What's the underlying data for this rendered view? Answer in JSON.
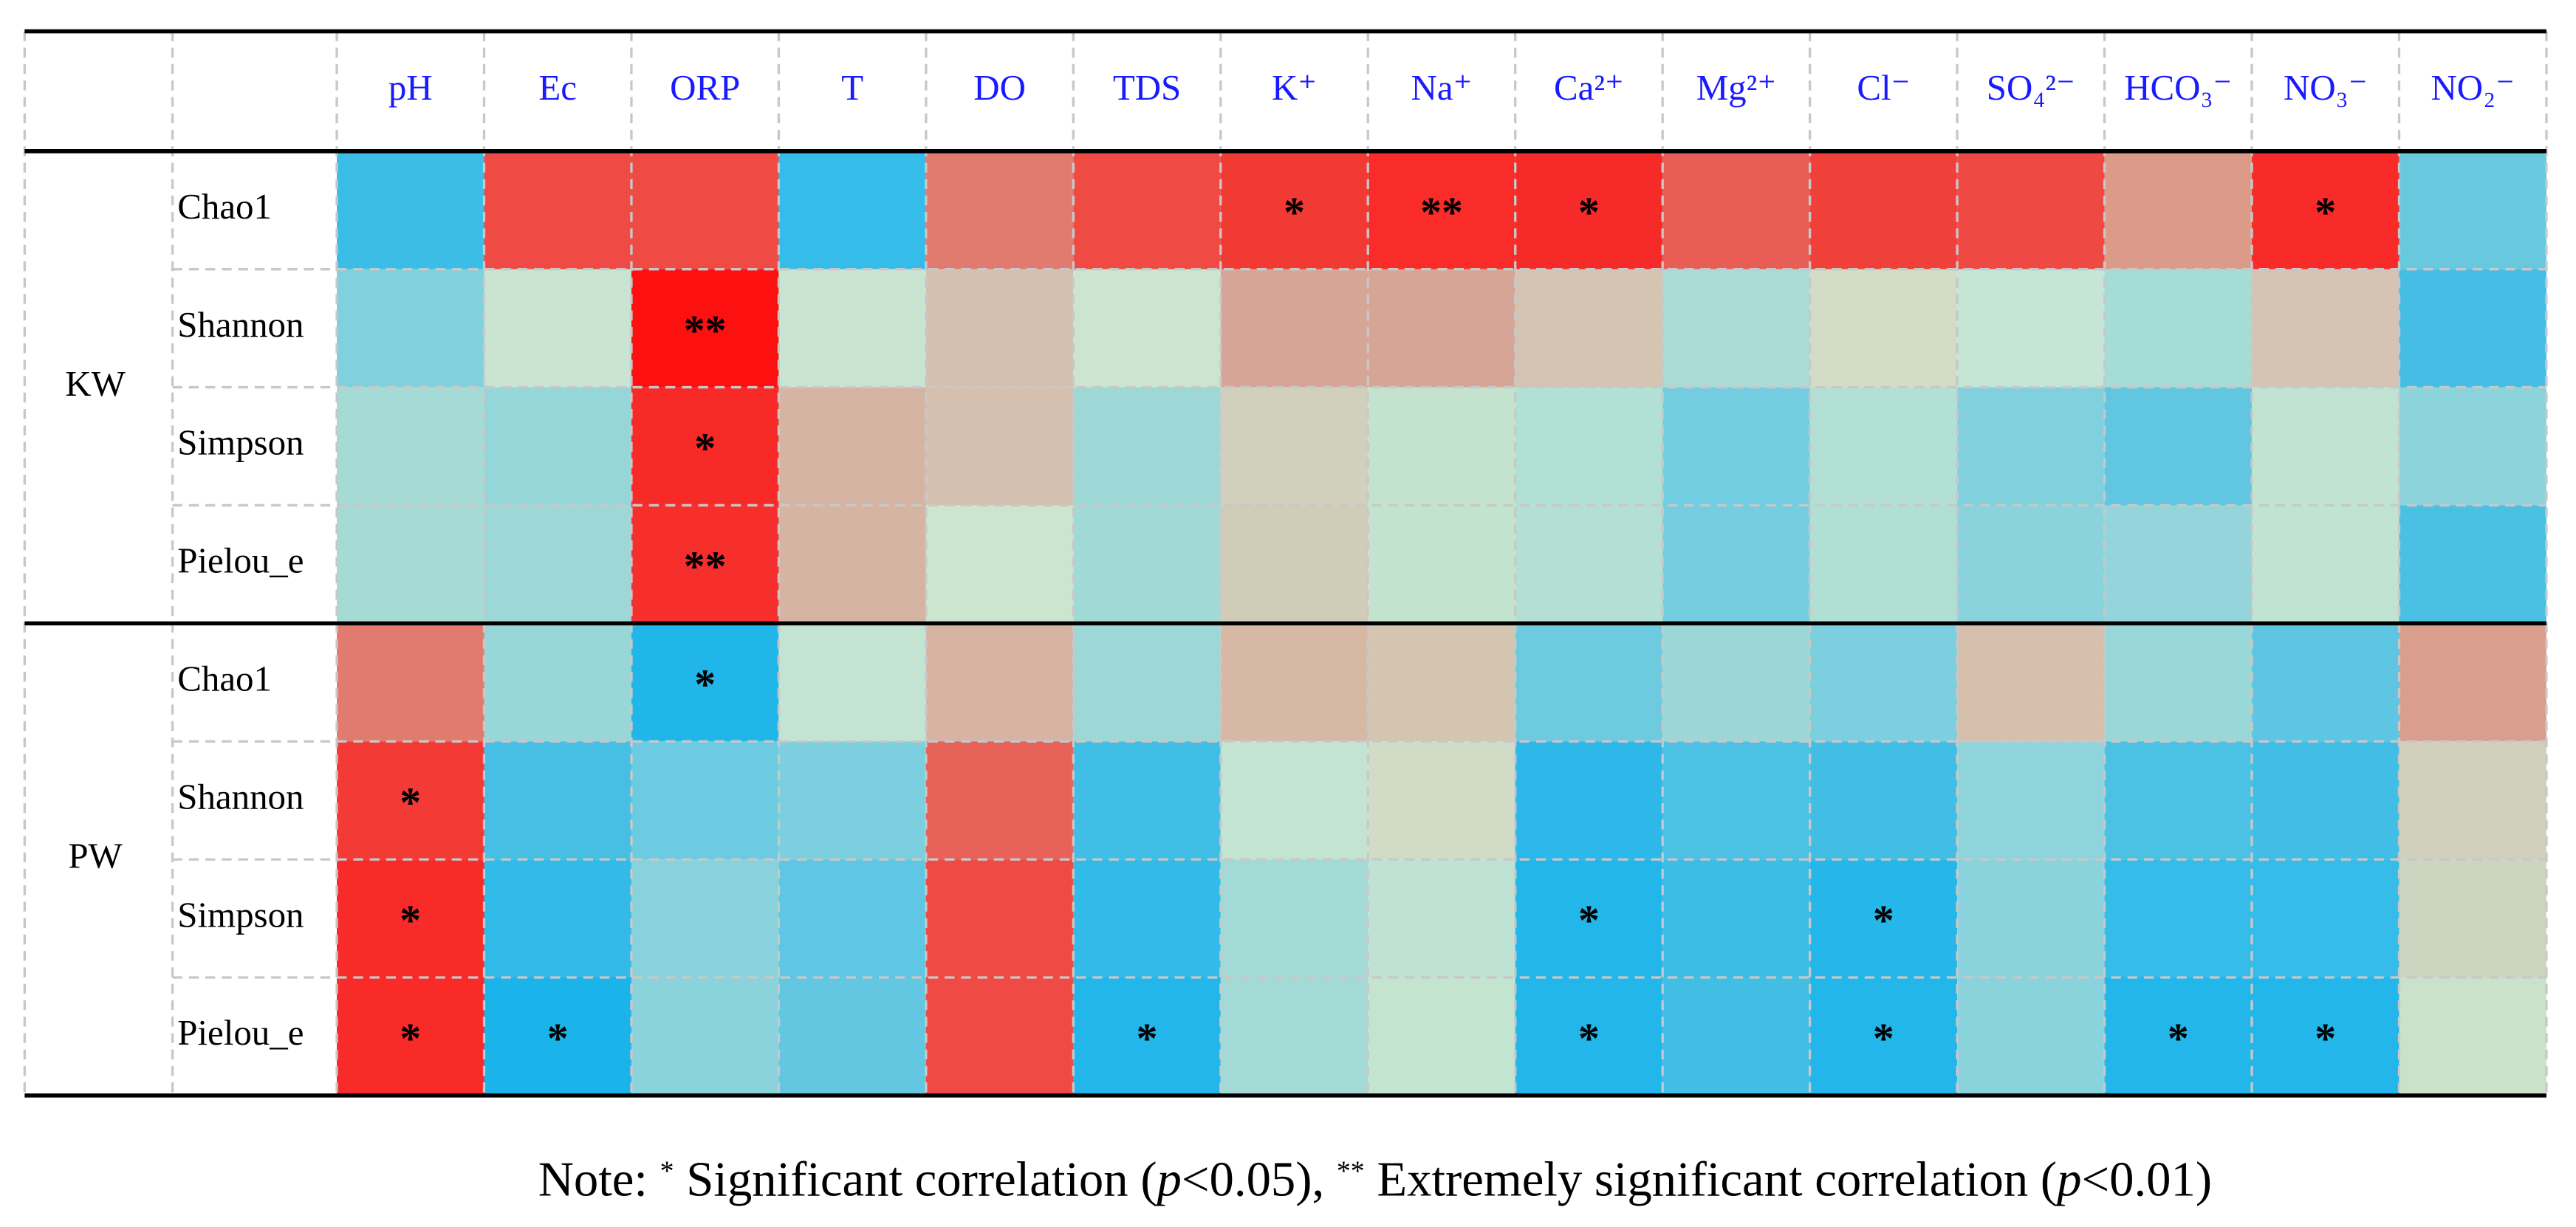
{
  "table": {
    "columns": [
      "pH",
      "Ec",
      "ORP",
      "T",
      "DO",
      "TDS",
      "K⁺",
      "Na⁺",
      "Ca²⁺",
      "Mg²⁺",
      "Cl⁻",
      "SO₄²⁻",
      "HCO₃⁻",
      "NO₃⁻",
      "NO₂⁻"
    ],
    "groups": [
      {
        "label": "KW",
        "rows": [
          {
            "label": "Chao1",
            "cells": [
              {
                "color": "#3bbde6"
              },
              {
                "color": "#ef4a43"
              },
              {
                "color": "#ef4a43"
              },
              {
                "color": "#35bce8"
              },
              {
                "color": "#e27b6f"
              },
              {
                "color": "#ef4a43"
              },
              {
                "color": "#f23a35",
                "mark": "*"
              },
              {
                "color": "#f92c2a",
                "mark": "**"
              },
              {
                "color": "#f72a2a",
                "mark": "*"
              },
              {
                "color": "#e85d55"
              },
              {
                "color": "#f0403a"
              },
              {
                "color": "#ee4a43"
              },
              {
                "color": "#dc9b88"
              },
              {
                "color": "#f92a2a",
                "mark": "*"
              },
              {
                "color": "#68c8dd"
              }
            ]
          },
          {
            "label": "Shannon",
            "cells": [
              {
                "color": "#80d0de"
              },
              {
                "color": "#c9e5d2"
              },
              {
                "color": "#fc1010",
                "mark": "**"
              },
              {
                "color": "#c9e5d2"
              },
              {
                "color": "#d5c0b0"
              },
              {
                "color": "#cde5cf"
              },
              {
                "color": "#d6a595"
              },
              {
                "color": "#d6a595"
              },
              {
                "color": "#d4c4b2"
              },
              {
                "color": "#aadcd5"
              },
              {
                "color": "#d2dcc7"
              },
              {
                "color": "#c5e5d5"
              },
              {
                "color": "#a5dcd5"
              },
              {
                "color": "#d5c3b3"
              },
              {
                "color": "#45bde4"
              }
            ]
          },
          {
            "label": "Simpson",
            "cells": [
              {
                "color": "#a6dbd5"
              },
              {
                "color": "#95d6d9"
              },
              {
                "color": "#f82a28",
                "mark": "*"
              },
              {
                "color": "#d5b4a3"
              },
              {
                "color": "#d5c0b0"
              },
              {
                "color": "#9dd8d7"
              },
              {
                "color": "#d0d0bc"
              },
              {
                "color": "#c3e3cf"
              },
              {
                "color": "#b2e0d4"
              },
              {
                "color": "#72cde0"
              },
              {
                "color": "#b2e0d4"
              },
              {
                "color": "#80d0de"
              },
              {
                "color": "#60c6e2"
              },
              {
                "color": "#c0e3d2"
              },
              {
                "color": "#8cd3db"
              }
            ]
          },
          {
            "label": "Pielou_e",
            "cells": [
              {
                "color": "#a6dbd5"
              },
              {
                "color": "#9dd8d7"
              },
              {
                "color": "#f62e2c",
                "mark": "**"
              },
              {
                "color": "#d5b4a3"
              },
              {
                "color": "#cbe5cf"
              },
              {
                "color": "#a1d9d6"
              },
              {
                "color": "#d0ccb8"
              },
              {
                "color": "#c3e3cf"
              },
              {
                "color": "#b3e0d3"
              },
              {
                "color": "#74cde0"
              },
              {
                "color": "#b0dfd4"
              },
              {
                "color": "#8ad3dc"
              },
              {
                "color": "#93d5da"
              },
              {
                "color": "#c0e3d2"
              },
              {
                "color": "#4ac1e4"
              }
            ]
          }
        ]
      },
      {
        "label": "PW",
        "rows": [
          {
            "label": "Chao1",
            "cells": [
              {
                "color": "#e27b6f"
              },
              {
                "color": "#98d7d8"
              },
              {
                "color": "#21b6ea",
                "mark": "*"
              },
              {
                "color": "#c3e4d2"
              },
              {
                "color": "#d7b3a3"
              },
              {
                "color": "#9dd8d7"
              },
              {
                "color": "#d7b8a5"
              },
              {
                "color": "#d3c5b0"
              },
              {
                "color": "#6dcbe0"
              },
              {
                "color": "#9cd7d7"
              },
              {
                "color": "#7ccfdf"
              },
              {
                "color": "#d6c0ad"
              },
              {
                "color": "#9ad7d8"
              },
              {
                "color": "#5ec6e3"
              },
              {
                "color": "#d99e8d"
              }
            ]
          },
          {
            "label": "Shannon",
            "cells": [
              {
                "color": "#f43a35",
                "mark": "*"
              },
              {
                "color": "#47bfe5"
              },
              {
                "color": "#6ccbe0"
              },
              {
                "color": "#7ccfdf"
              },
              {
                "color": "#e76258"
              },
              {
                "color": "#41bee6"
              },
              {
                "color": "#c4e4d2"
              },
              {
                "color": "#d0dcc6"
              },
              {
                "color": "#2db8e9"
              },
              {
                "color": "#4dc1e4"
              },
              {
                "color": "#42bee5"
              },
              {
                "color": "#8fd4db"
              },
              {
                "color": "#4bc1e4"
              },
              {
                "color": "#42bde6"
              },
              {
                "color": "#d0d0bc"
              }
            ]
          },
          {
            "label": "Simpson",
            "cells": [
              {
                "color": "#f82b29",
                "mark": "*"
              },
              {
                "color": "#32bbe9"
              },
              {
                "color": "#87d2dc"
              },
              {
                "color": "#5fc6e3"
              },
              {
                "color": "#ef4a43"
              },
              {
                "color": "#32bbe9"
              },
              {
                "color": "#a4dad6"
              },
              {
                "color": "#bee2d3"
              },
              {
                "color": "#22b6ea",
                "mark": "*"
              },
              {
                "color": "#3cbde6"
              },
              {
                "color": "#25b7ea",
                "mark": "*"
              },
              {
                "color": "#8ad3dc"
              },
              {
                "color": "#35bce8"
              },
              {
                "color": "#35bce8"
              },
              {
                "color": "#ccd5c0"
              }
            ]
          },
          {
            "label": "Pielou_e",
            "cells": [
              {
                "color": "#f82b29",
                "mark": "*"
              },
              {
                "color": "#1ab4eb",
                "mark": "*"
              },
              {
                "color": "#8ad3dc"
              },
              {
                "color": "#63c7e2"
              },
              {
                "color": "#ef4a43"
              },
              {
                "color": "#22b6ea",
                "mark": "*"
              },
              {
                "color": "#a4dad6"
              },
              {
                "color": "#c3e4cf"
              },
              {
                "color": "#22b6ea",
                "mark": "*"
              },
              {
                "color": "#42bee5"
              },
              {
                "color": "#22b6ea",
                "mark": "*"
              },
              {
                "color": "#8ad3dc"
              },
              {
                "color": "#22b6ea",
                "mark": "*"
              },
              {
                "color": "#22b6ea",
                "mark": "*"
              },
              {
                "color": "#c9e2c9"
              }
            ]
          }
        ]
      }
    ]
  },
  "note": [
    "Note: ",
    "*",
    " Significant correlation (",
    "p",
    "<0.05), ",
    "**",
    " Extremely significant correlation (",
    "p",
    "<0.01)"
  ]
}
